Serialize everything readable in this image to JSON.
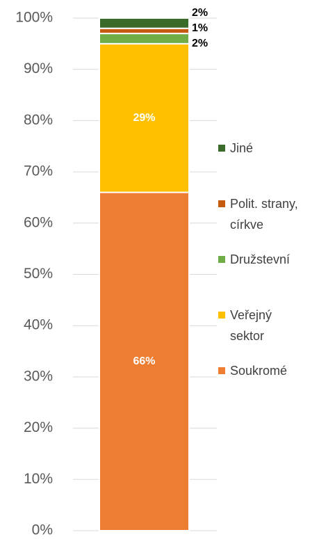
{
  "chart_data": {
    "type": "stacked-bar",
    "series": [
      {
        "name": "Soukromé",
        "color": "#ed7d31",
        "values": [
          66
        ],
        "value_labels": [
          "66%"
        ]
      },
      {
        "name": "Veřejný sektor",
        "color": "#ffc000",
        "values": [
          29
        ],
        "value_labels": [
          "29%"
        ]
      },
      {
        "name": "Družstevní",
        "color": "#70ad47",
        "values": [
          2
        ],
        "value_labels": [
          "2%"
        ]
      },
      {
        "name": "Polit. strany, církve",
        "color": "#c55a11",
        "values": [
          1
        ],
        "value_labels": [
          "1%"
        ]
      },
      {
        "name": "Jiné",
        "color": "#3b6b2b",
        "values": [
          2
        ],
        "value_labels": [
          "2%"
        ]
      }
    ],
    "ylim": [
      0,
      100
    ],
    "yticks": [
      {
        "value": 0,
        "label": "0%"
      },
      {
        "value": 10,
        "label": "10%"
      },
      {
        "value": 20,
        "label": "20%"
      },
      {
        "value": 30,
        "label": "30%"
      },
      {
        "value": 40,
        "label": "40%"
      },
      {
        "value": 50,
        "label": "50%"
      },
      {
        "value": 60,
        "label": "60%"
      },
      {
        "value": 70,
        "label": "70%"
      },
      {
        "value": 80,
        "label": "80%"
      },
      {
        "value": 90,
        "label": "90%"
      },
      {
        "value": 100,
        "label": "100%"
      }
    ],
    "grid": true,
    "legend": "right"
  }
}
